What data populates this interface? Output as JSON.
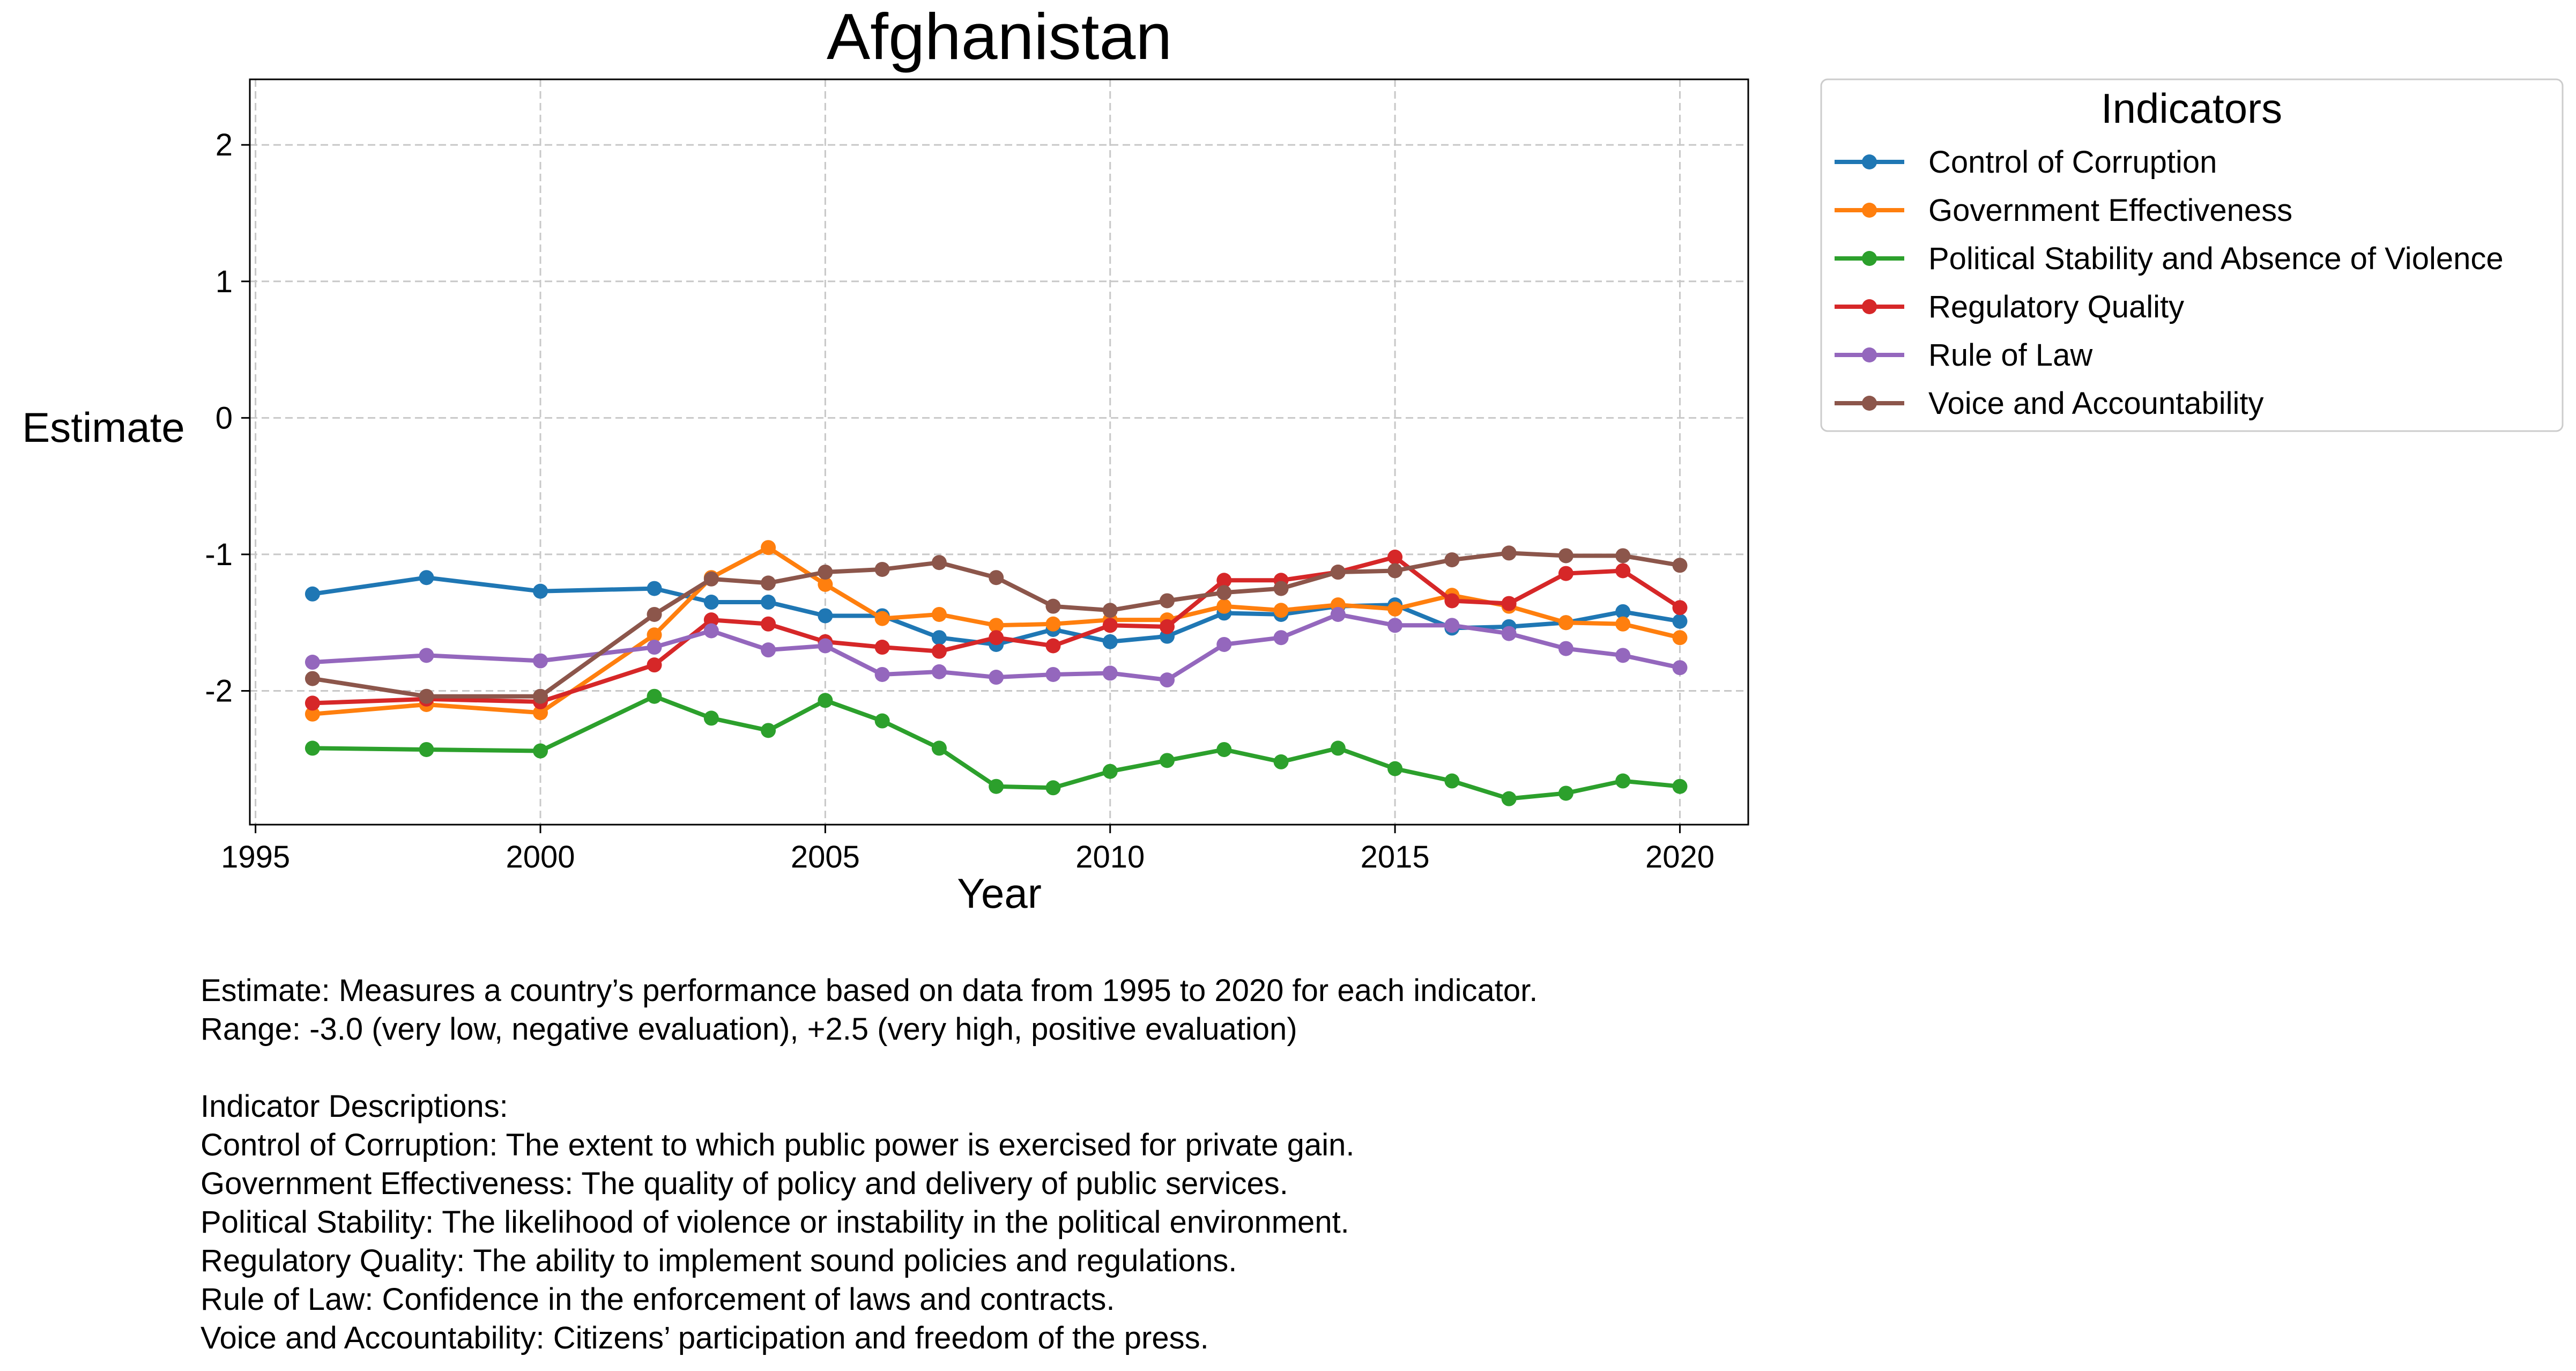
{
  "chart_data": {
    "type": "line",
    "title": "Afghanistan",
    "xlabel": "Year",
    "ylabel": "Estimate",
    "xlim": [
      1994.9,
      2021.2
    ],
    "ylim": [
      -2.98,
      2.48
    ],
    "xticks": [
      1995,
      2000,
      2005,
      2010,
      2015,
      2020
    ],
    "yticks": [
      -2,
      -1,
      0,
      1,
      2
    ],
    "grid": true,
    "legend": {
      "title": "Indicators",
      "placement": "outside-top-right"
    },
    "x": [
      1996,
      1998,
      2000,
      2002,
      2003,
      2004,
      2005,
      2006,
      2007,
      2008,
      2009,
      2010,
      2011,
      2012,
      2013,
      2014,
      2015,
      2016,
      2017,
      2018,
      2019,
      2020
    ],
    "series": [
      {
        "name": "Control of Corruption",
        "color": "#1f77b4",
        "values": [
          -1.29,
          -1.17,
          -1.27,
          -1.25,
          -1.35,
          -1.35,
          -1.45,
          -1.45,
          -1.61,
          -1.66,
          -1.55,
          -1.64,
          -1.6,
          -1.43,
          -1.44,
          -1.38,
          -1.37,
          -1.54,
          -1.53,
          -1.5,
          -1.42,
          -1.49
        ]
      },
      {
        "name": "Government Effectiveness",
        "color": "#ff7f0e",
        "values": [
          -2.17,
          -2.1,
          -2.16,
          -1.59,
          -1.17,
          -0.95,
          -1.22,
          -1.47,
          -1.44,
          -1.52,
          -1.51,
          -1.48,
          -1.48,
          -1.38,
          -1.41,
          -1.37,
          -1.4,
          -1.3,
          -1.38,
          -1.5,
          -1.51,
          -1.61
        ]
      },
      {
        "name": "Political Stability and Absence of Violence",
        "color": "#2ca02c",
        "values": [
          -2.42,
          -2.43,
          -2.44,
          -2.04,
          -2.2,
          -2.29,
          -2.07,
          -2.22,
          -2.42,
          -2.7,
          -2.71,
          -2.59,
          -2.51,
          -2.43,
          -2.52,
          -2.42,
          -2.57,
          -2.66,
          -2.79,
          -2.75,
          -2.66,
          -2.7
        ]
      },
      {
        "name": "Regulatory Quality",
        "color": "#d62728",
        "values": [
          -2.09,
          -2.06,
          -2.08,
          -1.81,
          -1.48,
          -1.51,
          -1.64,
          -1.68,
          -1.71,
          -1.61,
          -1.67,
          -1.52,
          -1.53,
          -1.19,
          -1.19,
          -1.13,
          -1.02,
          -1.34,
          -1.36,
          -1.14,
          -1.12,
          -1.39
        ]
      },
      {
        "name": "Rule of Law",
        "color": "#9467bd",
        "values": [
          -1.79,
          -1.74,
          -1.78,
          -1.68,
          -1.56,
          -1.7,
          -1.67,
          -1.88,
          -1.86,
          -1.9,
          -1.88,
          -1.87,
          -1.92,
          -1.66,
          -1.61,
          -1.44,
          -1.52,
          -1.52,
          -1.58,
          -1.69,
          -1.74,
          -1.83
        ]
      },
      {
        "name": "Voice and Accountability",
        "color": "#8c564b",
        "values": [
          -1.91,
          -2.04,
          -2.04,
          -1.44,
          -1.18,
          -1.21,
          -1.13,
          -1.11,
          -1.06,
          -1.17,
          -1.38,
          -1.41,
          -1.34,
          -1.28,
          -1.25,
          -1.13,
          -1.12,
          -1.04,
          -0.99,
          -1.01,
          -1.01,
          -1.08
        ]
      }
    ]
  },
  "notes": {
    "line1": "Estimate: Measures a country’s performance based on data from 1995 to 2020 for each indicator.",
    "line2": "Range: -3.0 (very low, negative evaluation), +2.5 (very high, positive evaluation)",
    "heading": "Indicator Descriptions:",
    "descriptions": [
      "Control of Corruption: The extent to which public power is exercised for private gain.",
      "Government Effectiveness: The quality of policy and delivery of public services.",
      "Political Stability: The likelihood of violence or instability in the political environment.",
      "Regulatory Quality: The ability to implement sound policies and regulations.",
      "Rule of Law: Confidence in the enforcement of laws and contracts.",
      "Voice and Accountability: Citizens’ participation and freedom of the press."
    ]
  }
}
